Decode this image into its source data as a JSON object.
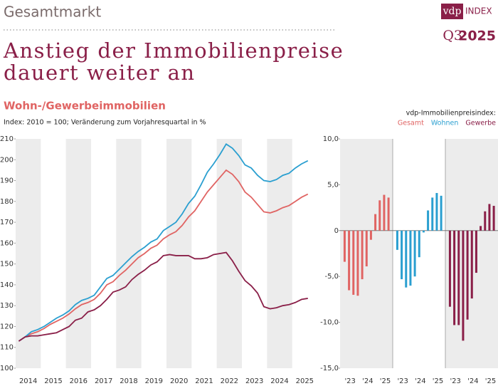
{
  "header": {
    "section": "Gesamtmarkt",
    "logo": "vdp",
    "logo_suffix": "INDEX",
    "quarter": "Q3",
    "year": "2025",
    "title": [
      "Anstieg der Immobilienpreise",
      "dauert weiter an"
    ]
  },
  "chart_data": [
    {
      "type": "line",
      "title": "Wohn-/Gewerbeimmobilien",
      "subtitle": "Index: 2010 = 100; Veränderung zum Vorjahresquartal in %",
      "categories": [
        "2014",
        null,
        null,
        null,
        "2015",
        null,
        null,
        null,
        "2016",
        null,
        null,
        null,
        "2017",
        null,
        null,
        null,
        "2018",
        null,
        null,
        null,
        "2019",
        null,
        null,
        null,
        "2020",
        null,
        null,
        null,
        "2021",
        null,
        null,
        null,
        "2022",
        null,
        null,
        null,
        "2023",
        null,
        null,
        null,
        "2024",
        null,
        null,
        null,
        "2025",
        null,
        null
      ],
      "series": [
        {
          "name": "Gesamt",
          "color": "#e06463",
          "values": [
            113,
            115,
            116.5,
            117.5,
            119,
            121,
            122.5,
            124,
            126,
            128.5,
            130.5,
            131.5,
            133,
            136,
            140,
            141.5,
            144.5,
            147,
            150,
            153,
            155,
            157.5,
            159,
            162,
            164,
            165.5,
            168.5,
            172.5,
            175.5,
            180,
            184.5,
            188,
            191.5,
            195,
            193,
            189.5,
            184.5,
            182,
            178.5,
            175,
            174.5,
            175.5,
            177,
            178,
            180,
            182,
            183.5
          ]
        },
        {
          "name": "Wohnen",
          "color": "#2a9fd0",
          "values": [
            113,
            115,
            117.5,
            118.5,
            120,
            122,
            124,
            125.5,
            127.5,
            130.5,
            132.5,
            133.5,
            135,
            139,
            143,
            144.5,
            147.5,
            150.5,
            153.5,
            156,
            158,
            160.5,
            162,
            166,
            168,
            170,
            174,
            179,
            182.5,
            188,
            194,
            198,
            202.5,
            207.5,
            205.5,
            202,
            197.5,
            196,
            192.5,
            190,
            189.5,
            190.5,
            192.5,
            193.5,
            196,
            198,
            199.5
          ]
        },
        {
          "name": "Gewerbe",
          "color": "#8a1f48",
          "values": [
            113,
            115,
            115.5,
            115.5,
            116,
            116.5,
            117,
            118.5,
            120,
            123,
            124,
            127,
            128,
            130,
            133,
            136.5,
            137.5,
            139,
            142.5,
            145,
            147,
            149.5,
            151,
            154,
            154.5,
            154,
            154,
            154,
            152.5,
            152.5,
            153,
            154.5,
            155,
            155.5,
            151.5,
            146.5,
            142,
            139.5,
            136,
            129.5,
            128.5,
            129,
            130,
            130.5,
            131.5,
            133,
            133.5
          ]
        }
      ],
      "ylim": [
        100,
        210
      ],
      "yticks": [
        100,
        110,
        120,
        130,
        140,
        150,
        160,
        170,
        180,
        190,
        200,
        210
      ]
    },
    {
      "type": "bar",
      "legend_title": "vdp-Immobilienpreisindex:",
      "categories": [
        "'23",
        null,
        null,
        null,
        "'24",
        null,
        null,
        null,
        "'25",
        null,
        null
      ],
      "series": [
        {
          "name": "Gesamt",
          "color": "#e06463",
          "values": [
            -3.4,
            -6.5,
            -7.0,
            -7.1,
            -5.3,
            -3.9,
            -1.0,
            1.8,
            3.3,
            3.9,
            3.6
          ]
        },
        {
          "name": "Wohnen",
          "color": "#2a9fd0",
          "values": [
            -2.1,
            -5.3,
            -6.2,
            -6.0,
            -5.0,
            -2.9,
            -0.2,
            2.2,
            3.6,
            4.1,
            3.8
          ]
        },
        {
          "name": "Gewerbe",
          "color": "#8a1f48",
          "values": [
            -8.3,
            -10.3,
            -10.3,
            -12.0,
            -9.7,
            -7.4,
            -4.6,
            0.5,
            2.1,
            2.9,
            2.7
          ]
        }
      ],
      "ylim": [
        -15,
        10
      ],
      "yticks": [
        {
          "value": -15,
          "label": "-15,0"
        },
        {
          "value": -10,
          "label": "-10,0"
        },
        {
          "value": -5,
          "label": "-5,0"
        },
        0,
        {
          "value": 5,
          "label": "5,0"
        },
        {
          "value": 10,
          "label": "10,0"
        }
      ]
    }
  ]
}
